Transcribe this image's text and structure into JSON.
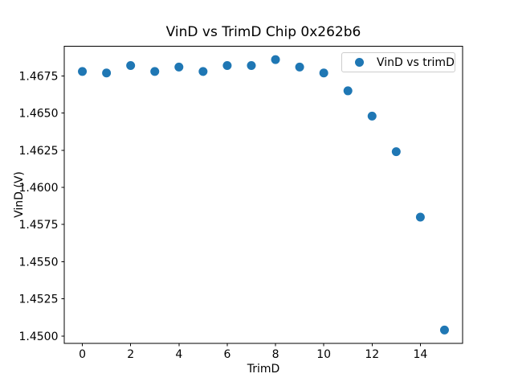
{
  "figure": {
    "background": "#ffffff",
    "text_color": "#000000"
  },
  "chart_data": {
    "type": "scatter",
    "title": "VinD vs TrimD Chip 0x262b6",
    "xlabel": "TrimD",
    "ylabel": "VinD (V)",
    "legend": {
      "position": "upper right",
      "entries": [
        "VinD vs trimD"
      ]
    },
    "marker": {
      "shape": "circle",
      "color": "#1f77b4"
    },
    "x": [
      0,
      1,
      2,
      3,
      4,
      5,
      6,
      7,
      8,
      9,
      10,
      11,
      12,
      13,
      14,
      15
    ],
    "y": [
      1.4678,
      1.4677,
      1.4682,
      1.4678,
      1.4681,
      1.4678,
      1.4682,
      1.4682,
      1.4686,
      1.4681,
      1.4677,
      1.4665,
      1.4648,
      1.4624,
      1.458,
      1.4504
    ],
    "xlim": [
      -0.75,
      15.75
    ],
    "ylim": [
      1.4495,
      1.4695
    ],
    "xtick_values": [
      0,
      2,
      4,
      6,
      8,
      10,
      12,
      14
    ],
    "xtick_labels": [
      "0",
      "2",
      "4",
      "6",
      "8",
      "10",
      "12",
      "14"
    ],
    "ytick_values": [
      1.45,
      1.4525,
      1.455,
      1.4575,
      1.46,
      1.4625,
      1.465,
      1.4675
    ],
    "ytick_labels": [
      "1.4500",
      "1.4525",
      "1.4550",
      "1.4575",
      "1.4600",
      "1.4625",
      "1.4650",
      "1.4675"
    ],
    "grid": false,
    "axes_color": "#000000",
    "legend_border_color": "#cccccc"
  }
}
